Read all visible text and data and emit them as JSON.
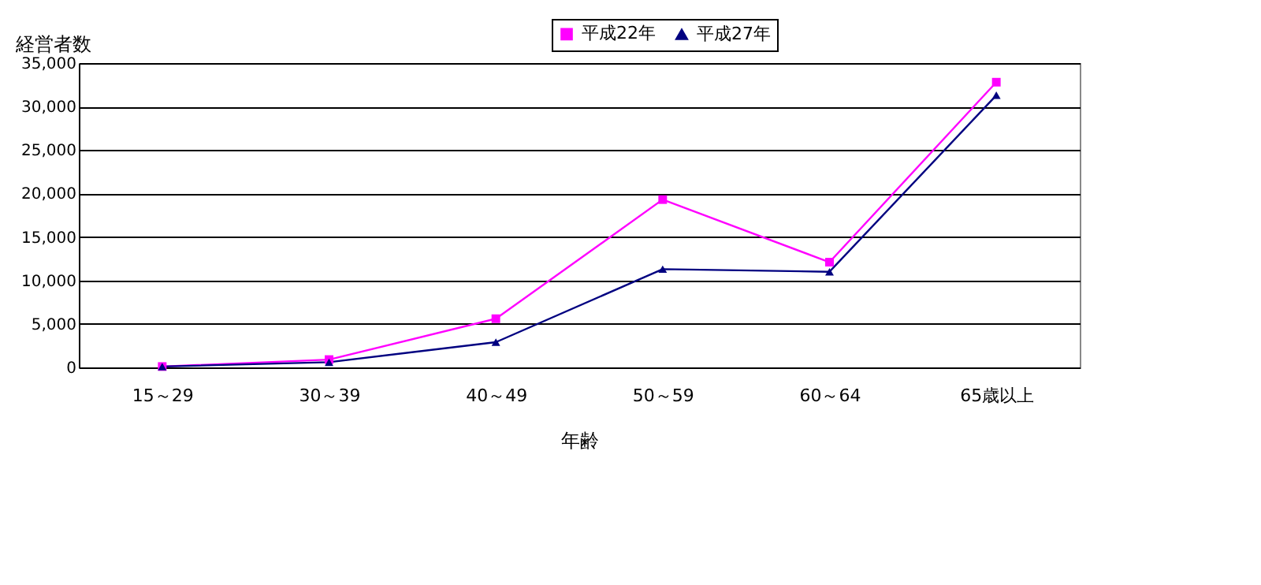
{
  "chart_data": {
    "type": "line",
    "xlabel": "年齢",
    "ylabel": "経営者数",
    "categories": [
      "15～29",
      "30～39",
      "40～49",
      "50～59",
      "60～64",
      "65歳以上"
    ],
    "series": [
      {
        "name": "平成22年",
        "color": "#ff00ff",
        "marker": "square",
        "values": [
          100,
          900,
          5600,
          19300,
          12100,
          32800
        ]
      },
      {
        "name": "平成27年",
        "color": "#000080",
        "marker": "triangle",
        "values": [
          100,
          600,
          2900,
          11300,
          11000,
          31300
        ]
      }
    ],
    "ylim": [
      0,
      35000
    ],
    "yticks": [
      {
        "value": 0,
        "label": "0"
      },
      {
        "value": 5000,
        "label": "5,000"
      },
      {
        "value": 10000,
        "label": "10,000"
      },
      {
        "value": 15000,
        "label": "15,000"
      },
      {
        "value": 20000,
        "label": "20,000"
      },
      {
        "value": 25000,
        "label": "25,000"
      },
      {
        "value": 30000,
        "label": "30,000"
      },
      {
        "value": 35000,
        "label": "35,000"
      }
    ],
    "grid": "y",
    "legend": "top",
    "line_style": "solid"
  }
}
